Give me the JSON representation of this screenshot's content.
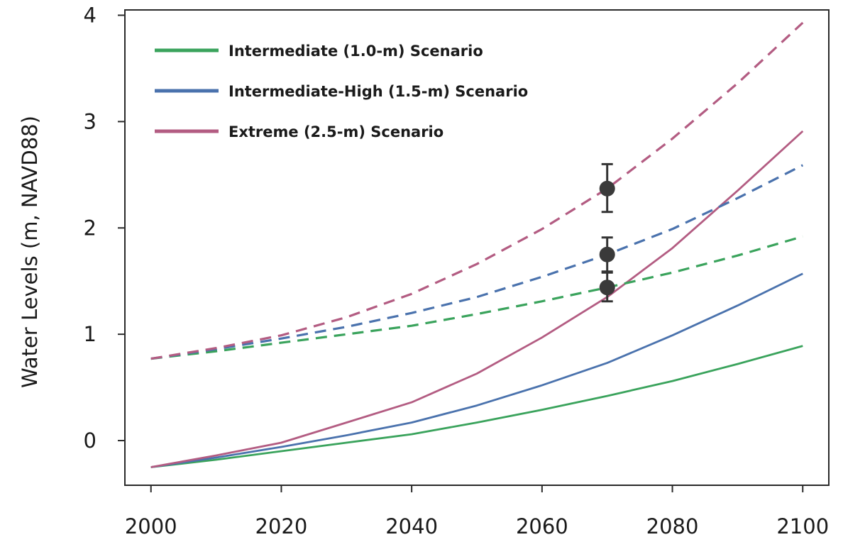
{
  "chart_data": {
    "type": "line",
    "title": "",
    "xlabel": "",
    "ylabel": "Water Levels (m, NAVD88)",
    "xlim": [
      1996,
      2104
    ],
    "ylim": [
      -0.42,
      4.05
    ],
    "x_ticks": [
      2000,
      2020,
      2040,
      2060,
      2080,
      2100
    ],
    "x_tick_labels": [
      "2000",
      "2020",
      "2040",
      "2060",
      "2080",
      "2100"
    ],
    "y_ticks": [
      0,
      1,
      2,
      3,
      4
    ],
    "y_tick_labels": [
      "0",
      "1",
      "2",
      "3",
      "4"
    ],
    "grid": false,
    "legend_position": "top-left",
    "series": [
      {
        "name": "Intermediate (1.0-m) Scenario",
        "color": "#3aa35c",
        "style": "solid",
        "x": [
          2000,
          2010,
          2020,
          2030,
          2040,
          2050,
          2060,
          2070,
          2080,
          2090,
          2100
        ],
        "y": [
          -0.25,
          -0.18,
          -0.1,
          -0.02,
          0.06,
          0.17,
          0.29,
          0.42,
          0.56,
          0.72,
          0.89
        ]
      },
      {
        "name": "Intermediate-High (1.5-m) Scenario",
        "color": "#4a72ad",
        "style": "solid",
        "x": [
          2000,
          2010,
          2020,
          2030,
          2040,
          2050,
          2060,
          2070,
          2080,
          2090,
          2100
        ],
        "y": [
          -0.25,
          -0.16,
          -0.06,
          0.05,
          0.17,
          0.33,
          0.52,
          0.73,
          0.99,
          1.27,
          1.57
        ]
      },
      {
        "name": "Extreme (2.5-m) Scenario",
        "color": "#b35c82",
        "style": "solid",
        "x": [
          2000,
          2010,
          2020,
          2030,
          2040,
          2050,
          2060,
          2070,
          2080,
          2090,
          2100
        ],
        "y": [
          -0.25,
          -0.14,
          -0.02,
          0.17,
          0.36,
          0.63,
          0.97,
          1.35,
          1.81,
          2.35,
          2.91
        ]
      },
      {
        "name": "Intermediate (1.0-m) Scenario",
        "color": "#3aa35c",
        "style": "dashed",
        "x": [
          2000,
          2010,
          2020,
          2030,
          2040,
          2050,
          2060,
          2070,
          2080,
          2090,
          2100
        ],
        "y": [
          0.77,
          0.84,
          0.92,
          1.0,
          1.08,
          1.19,
          1.31,
          1.44,
          1.58,
          1.74,
          1.92
        ]
      },
      {
        "name": "Intermediate-High (1.5-m) Scenario",
        "color": "#4a72ad",
        "style": "dashed",
        "x": [
          2000,
          2010,
          2020,
          2030,
          2040,
          2050,
          2060,
          2070,
          2080,
          2090,
          2100
        ],
        "y": [
          0.77,
          0.86,
          0.96,
          1.07,
          1.2,
          1.35,
          1.54,
          1.75,
          1.99,
          2.28,
          2.59
        ]
      },
      {
        "name": "Extreme (2.5-m) Scenario",
        "color": "#b35c82",
        "style": "dashed",
        "x": [
          2000,
          2010,
          2020,
          2030,
          2040,
          2050,
          2060,
          2070,
          2080,
          2090,
          2100
        ],
        "y": [
          0.77,
          0.87,
          0.99,
          1.16,
          1.38,
          1.66,
          1.99,
          2.37,
          2.84,
          3.36,
          3.93
        ]
      }
    ],
    "error_points": [
      {
        "x": 2070,
        "y": 2.37,
        "low": 2.15,
        "high": 2.6
      },
      {
        "x": 2070,
        "y": 1.75,
        "low": 1.59,
        "high": 1.91
      },
      {
        "x": 2070,
        "y": 1.44,
        "low": 1.31,
        "high": 1.58
      }
    ],
    "legend": [
      {
        "label": "Intermediate (1.0-m) Scenario",
        "color": "#3aa35c"
      },
      {
        "label": "Intermediate-High (1.5-m) Scenario",
        "color": "#4a72ad"
      },
      {
        "label": "Extreme (2.5-m) Scenario",
        "color": "#b35c82"
      }
    ]
  }
}
